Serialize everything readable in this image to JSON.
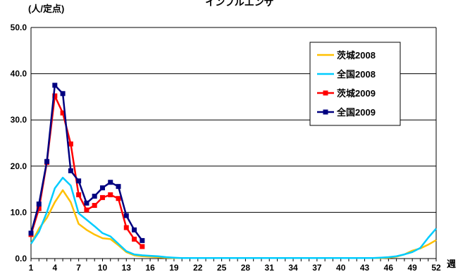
{
  "chart_data": {
    "type": "line",
    "title": "インフルエンザ",
    "ylabel": "(人/定点)",
    "xlabel": "週",
    "ylim": [
      0,
      50
    ],
    "yticks": [
      "0.0",
      "10.0",
      "20.0",
      "30.0",
      "40.0",
      "50.0"
    ],
    "xlim": [
      1,
      52
    ],
    "xticks": [
      "1",
      "4",
      "7",
      "10",
      "13",
      "16",
      "19",
      "22",
      "25",
      "28",
      "31",
      "34",
      "37",
      "40",
      "43",
      "46",
      "49",
      "52"
    ],
    "grid": true,
    "legend_position": "top-right",
    "series": [
      {
        "name": "茨城2008",
        "color": "#FFC000",
        "marker": false,
        "x": [
          1,
          2,
          3,
          4,
          5,
          6,
          7,
          8,
          9,
          10,
          11,
          12,
          13,
          14,
          15,
          16,
          17,
          18,
          19,
          20,
          21,
          22,
          23,
          24,
          25,
          26,
          27,
          28,
          29,
          30,
          31,
          32,
          33,
          34,
          35,
          36,
          37,
          38,
          39,
          40,
          41,
          42,
          43,
          44,
          45,
          46,
          47,
          48,
          49,
          50,
          51,
          52
        ],
        "y": [
          3.2,
          6.5,
          8.8,
          12.2,
          14.8,
          12.2,
          7.5,
          6.2,
          5.2,
          4.4,
          4.2,
          2.9,
          1.4,
          0.7,
          0.5,
          0.4,
          0.3,
          0.2,
          0.1,
          0.1,
          0.1,
          0.1,
          0.1,
          0.1,
          0.1,
          0.1,
          0.1,
          0.1,
          0.1,
          0.1,
          0.1,
          0.1,
          0.1,
          0.1,
          0.1,
          0.1,
          0.1,
          0.1,
          0.1,
          0.1,
          0.1,
          0.1,
          0.1,
          0.1,
          0.1,
          0.2,
          0.4,
          0.9,
          1.7,
          2.2,
          3.0,
          4.0
        ]
      },
      {
        "name": "全国2008",
        "color": "#00CCFF",
        "marker": false,
        "x": [
          1,
          2,
          3,
          4,
          5,
          6,
          7,
          8,
          9,
          10,
          11,
          12,
          13,
          14,
          15,
          16,
          17,
          18,
          19,
          20,
          21,
          22,
          23,
          24,
          25,
          26,
          27,
          28,
          29,
          30,
          31,
          32,
          33,
          34,
          35,
          36,
          37,
          38,
          39,
          40,
          41,
          42,
          43,
          44,
          45,
          46,
          47,
          48,
          49,
          50,
          51,
          52
        ],
        "y": [
          3.2,
          5.8,
          10.0,
          15.2,
          17.5,
          15.8,
          9.8,
          8.4,
          7.0,
          5.5,
          4.8,
          3.2,
          1.6,
          0.9,
          0.7,
          0.6,
          0.5,
          0.3,
          0.2,
          0.1,
          0.1,
          0.1,
          0.1,
          0.1,
          0.1,
          0.1,
          0.1,
          0.1,
          0.1,
          0.1,
          0.1,
          0.1,
          0.1,
          0.1,
          0.1,
          0.1,
          0.1,
          0.1,
          0.1,
          0.1,
          0.1,
          0.1,
          0.1,
          0.1,
          0.2,
          0.3,
          0.5,
          0.9,
          1.4,
          2.3,
          4.5,
          6.5
        ]
      },
      {
        "name": "茨城2009",
        "color": "#FF0000",
        "marker": true,
        "x": [
          1,
          2,
          3,
          4,
          5,
          6,
          7,
          8,
          9,
          10,
          11,
          12,
          13,
          14,
          15
        ],
        "y": [
          5.2,
          10.8,
          20.8,
          35.2,
          31.5,
          24.8,
          13.8,
          10.5,
          11.5,
          13.2,
          13.8,
          13.0,
          6.7,
          4.2,
          2.6
        ]
      },
      {
        "name": "全国2009",
        "color": "#000080",
        "marker": true,
        "x": [
          1,
          2,
          3,
          4,
          5,
          6,
          7,
          8,
          9,
          10,
          11,
          12,
          13,
          14,
          15
        ],
        "y": [
          5.5,
          11.8,
          21.0,
          37.5,
          35.7,
          19.0,
          16.8,
          12.0,
          13.5,
          15.3,
          16.5,
          15.6,
          9.3,
          6.2,
          3.9
        ]
      }
    ]
  }
}
